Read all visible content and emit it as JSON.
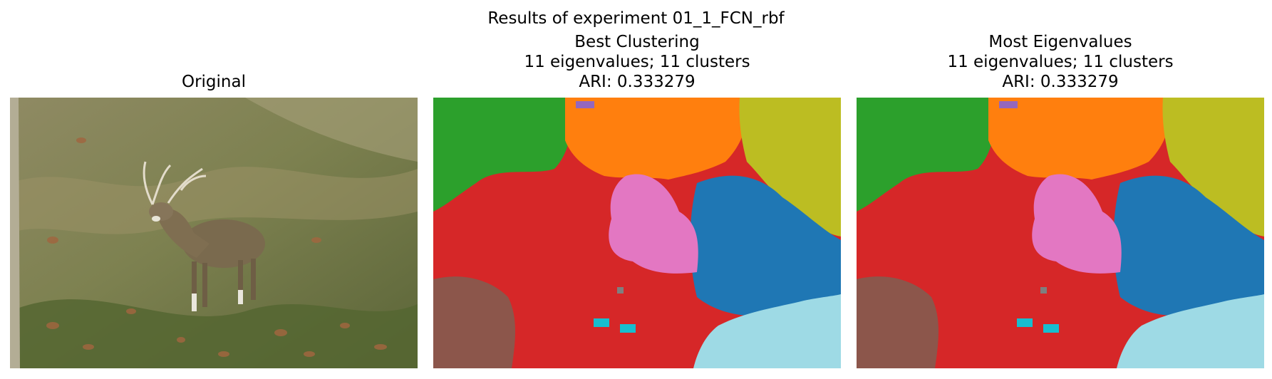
{
  "figure": {
    "suptitle": "Results of experiment 01_1_FCN_rbf"
  },
  "panels": [
    {
      "title_lines": [
        "Original"
      ]
    },
    {
      "title_lines": [
        "Best Clustering",
        "11 eigenvalues; 11 clusters",
        "ARI: 0.333279"
      ]
    },
    {
      "title_lines": [
        "Most Eigenvalues",
        "11 eigenvalues; 11 clusters",
        "ARI: 0.333279"
      ]
    }
  ],
  "colors": {
    "green": "#2ca02c",
    "orange": "#ff7f0e",
    "olive": "#bcbd22",
    "red": "#d62728",
    "pink": "#e377c2",
    "blue": "#1f77b4",
    "brown": "#8c564b",
    "cyan": "#17becf",
    "lightblue": "#9edae5",
    "purple": "#9467bd",
    "gray": "#7f7f7f"
  }
}
